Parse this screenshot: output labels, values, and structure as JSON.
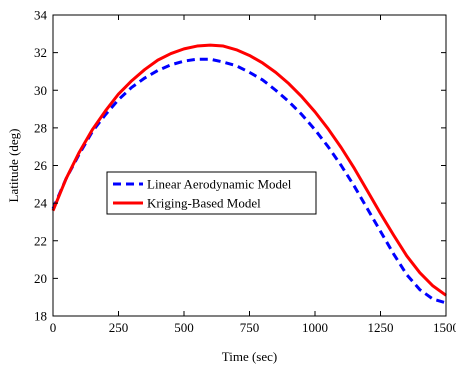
{
  "chart_data": {
    "type": "line",
    "xlabel": "Time (sec)",
    "ylabel": "Latitude (deg)",
    "xlim": [
      0,
      1500
    ],
    "ylim": [
      18,
      34
    ],
    "xticks": [
      "0",
      "250",
      "500",
      "750",
      "1000",
      "1250",
      "1500"
    ],
    "yticks": [
      "18",
      "20",
      "22",
      "24",
      "26",
      "28",
      "30",
      "32",
      "34"
    ],
    "grid": false,
    "legend_position": "center-left",
    "series": [
      {
        "name": "Linear Aerodynamic Model",
        "color": "#0000ff",
        "style": "dashed",
        "x": [
          0,
          50,
          100,
          150,
          200,
          250,
          300,
          350,
          400,
          450,
          500,
          550,
          600,
          650,
          700,
          750,
          800,
          850,
          900,
          950,
          1000,
          1050,
          1100,
          1150,
          1200,
          1250,
          1300,
          1350,
          1400,
          1450,
          1500
        ],
        "y": [
          23.7,
          25.3,
          26.6,
          27.8,
          28.7,
          29.5,
          30.15,
          30.65,
          31.05,
          31.35,
          31.55,
          31.65,
          31.65,
          31.5,
          31.3,
          30.95,
          30.55,
          30.0,
          29.4,
          28.7,
          27.9,
          27.0,
          26.0,
          24.9,
          23.7,
          22.5,
          21.3,
          20.2,
          19.4,
          18.9,
          18.7
        ]
      },
      {
        "name": "Kriging-Based Model",
        "color": "#ff0000",
        "style": "solid",
        "x": [
          0,
          50,
          100,
          150,
          200,
          250,
          300,
          350,
          400,
          450,
          500,
          550,
          600,
          650,
          700,
          750,
          800,
          850,
          900,
          950,
          1000,
          1050,
          1100,
          1150,
          1200,
          1250,
          1300,
          1350,
          1400,
          1450,
          1500
        ],
        "y": [
          23.6,
          25.3,
          26.7,
          27.9,
          28.9,
          29.8,
          30.5,
          31.1,
          31.6,
          31.95,
          32.2,
          32.35,
          32.4,
          32.35,
          32.15,
          31.85,
          31.45,
          30.95,
          30.35,
          29.65,
          28.85,
          27.95,
          26.95,
          25.85,
          24.65,
          23.45,
          22.3,
          21.2,
          20.3,
          19.6,
          19.1
        ]
      }
    ]
  }
}
